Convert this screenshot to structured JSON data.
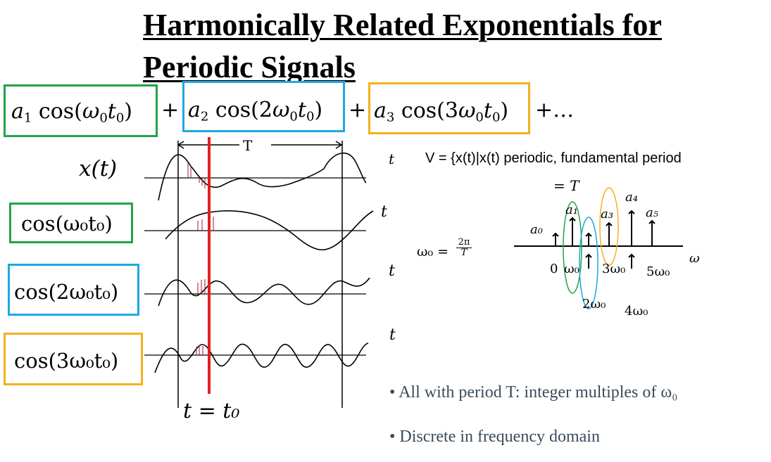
{
  "title": {
    "line1": "Harmonically Related Exponentials for",
    "line2": "Periodic Signals"
  },
  "series_expression": {
    "term1": {
      "coef": "a",
      "coef_sub": "1",
      "func": "cos(",
      "omega": "ω",
      "omega_sub": "0",
      "t": "t",
      "t_sub": "0",
      "close": ")"
    },
    "plus1": "+",
    "term2": {
      "coef": "a",
      "coef_sub": "2",
      "func": "cos(2",
      "omega": "ω",
      "omega_sub": "0",
      "t": "t",
      "t_sub": "0",
      "close": ")"
    },
    "plus2": "+",
    "term3": {
      "coef": "a",
      "coef_sub": "3",
      "func": "cos(3",
      "omega": "ω",
      "omega_sub": "0",
      "t": "t",
      "t_sub": "0",
      "close": ")"
    },
    "tail": "+…"
  },
  "waveform_labels": {
    "x_of_t": "x(t)",
    "cos1": "cos(ω₀t₀)",
    "cos2": "cos(2ω₀t₀)",
    "cos3": "cos(3ω₀t₀)",
    "period_label": "T",
    "t_axis": "t",
    "t_equals_t0": "t  = t₀"
  },
  "definition": {
    "t_label": "t",
    "set_text": "V = {x(t)|x(t) periodic, fundamental period",
    "set_text_line2": "= T",
    "omega0": "ω₀ =",
    "omega0_num": "2π",
    "omega0_den": "T"
  },
  "spectrum": {
    "axis_label": "ω",
    "coefficients": [
      "a₀",
      "a₁",
      "a₃",
      "a₄",
      "a₅"
    ],
    "ticks": [
      "0",
      "ω₀",
      "3ω₀",
      "5ω₀",
      "2ω₀",
      "4ω₀"
    ]
  },
  "bullets": [
    "All with period T: integer multiples of ω₀",
    "Discrete in frequency domain"
  ],
  "colors": {
    "green": "#22a34a",
    "blue": "#1ea8e0",
    "orange": "#f2b21a",
    "red_marker": "#e0201c",
    "bullet_text": "#3b4b5c"
  }
}
